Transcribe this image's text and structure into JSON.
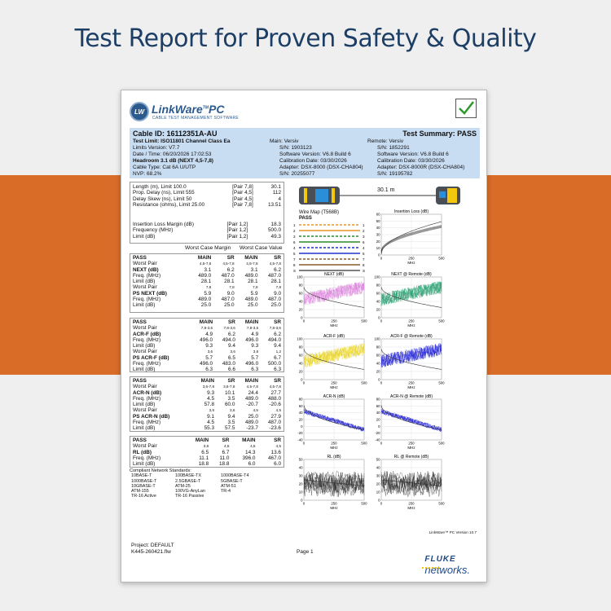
{
  "headline": "Test Report for Proven Safety & Quality",
  "logo": {
    "badge": "LW",
    "name": "LinkWare",
    "tm": "TM",
    "suffix": "PC",
    "subtitle": "CABLE TEST MANAGEMENT SOFTWARE"
  },
  "header": {
    "cable_id": "Cable ID: 16112351A-AU",
    "summary": "Test Summary: PASS",
    "left": [
      "Test Limit: ISO11801 Channel Class Ea",
      "Limits Version: V7.7",
      "Date / Time: 06/20/2026 17:02:53",
      "Headroom 3.1 dB (NEXT 4,5-7,8)",
      "Cable Type: Cat 6A U/UTP",
      "NVP: 68.2%"
    ],
    "mid": [
      "Main: Versiv",
      "S/N: 1903123",
      "Software Version: V6.8 Build 6",
      "Calibration Date: 03/30/2026",
      "Adapter: DSX-8000 (DSX-CHA804)",
      "S/N: 20255077"
    ],
    "right": [
      "Remote: Versiv",
      "S/N: 1852291",
      "Software Version: V6.8 Build 6",
      "Calibration Date: 03/30/2026",
      "Adapter: DSX-8000R (DSX-CHA804)",
      "S/N: 19195782"
    ]
  },
  "basic_results": [
    [
      "Length (m), Limit 100.0",
      "[Pair 7,8]",
      "30.1"
    ],
    [
      "Prop. Delay (ns), Limit 555",
      "[Pair 4,5]",
      "112"
    ],
    [
      "Delay Skew (ns), Limit 50",
      "[Pair 4,5]",
      "4"
    ],
    [
      "Resistance (ohms), Limit 25.00",
      "[Pair 7,8]",
      "13.51"
    ]
  ],
  "insertion_results": [
    [
      "Insertion Loss Margin (dB)",
      "[Pair 1,2]",
      "18.3"
    ],
    [
      "Frequency (MHz)",
      "[Pair 1,2]",
      "500.0"
    ],
    [
      "Limit (dB)",
      "[Pair 1,2]",
      "49.3"
    ]
  ],
  "worst_case": {
    "margin": "Worst Case Margin",
    "value": "Worst Case Value"
  },
  "blocks": [
    {
      "head": [
        "PASS",
        "MAIN",
        "SR",
        "MAIN",
        "SR"
      ],
      "groups": [
        {
          "pairs": [
            "4,5-7,8",
            "4,5-7,8",
            "4,5-7,8",
            "4,5-7,8"
          ],
          "rows": [
            [
              "NEXT (dB)",
              "3.1",
              "6.2",
              "3.1",
              "6.2"
            ],
            [
              "Freq. (MHz)",
              "489.0",
              "487.0",
              "489.0",
              "487.0"
            ],
            [
              "Limit (dB)",
              "28.1",
              "28.1",
              "28.1",
              "28.1"
            ]
          ]
        },
        {
          "pairs": [
            "7,8",
            "7,8",
            "7,8",
            "7,8"
          ],
          "rows": [
            [
              "PS NEXT (dB)",
              "5.9",
              "9.0",
              "5.9",
              "9.0"
            ],
            [
              "Freq. (MHz)",
              "489.0",
              "487.0",
              "489.0",
              "487.0"
            ],
            [
              "Limit (dB)",
              "25.0",
              "25.0",
              "25.0",
              "25.0"
            ]
          ]
        }
      ]
    },
    {
      "head": [
        "PASS",
        "MAIN",
        "SR",
        "MAIN",
        "SR"
      ],
      "groups": [
        {
          "pairs": [
            "7,8-3,6",
            "7,8-3,6",
            "7,8-3,6",
            "7,8-3,6"
          ],
          "rows": [
            [
              "ACR-F (dB)",
              "4.9",
              "6.2",
              "4.9",
              "6.2"
            ],
            [
              "Freq. (MHz)",
              "496.0",
              "494.0",
              "496.0",
              "494.0"
            ],
            [
              "Limit (dB)",
              "9.3",
              "9.4",
              "9.3",
              "9.4"
            ]
          ]
        },
        {
          "pairs": [
            "3,6",
            "3,6",
            "3,6",
            "1,2"
          ],
          "rows": [
            [
              "PS ACR-F (dB)",
              "5.7",
              "6.5",
              "5.7",
              "6.7"
            ],
            [
              "Freq. (MHz)",
              "496.0",
              "483.0",
              "496.0",
              "500.0"
            ],
            [
              "Limit (dB)",
              "6.3",
              "6.6",
              "6.3",
              "6.3"
            ]
          ]
        }
      ]
    },
    {
      "head": [
        "PASS",
        "MAIN",
        "SR",
        "MAIN",
        "SR"
      ],
      "groups": [
        {
          "pairs": [
            "3,6-7,8",
            "3,6-7,8",
            "4,5-7,8",
            "4,5-7,8"
          ],
          "rows": [
            [
              "ACR-N (dB)",
              "9.3",
              "10.1",
              "24.4",
              "27.7"
            ],
            [
              "Freq. (MHz)",
              "4.5",
              "3.5",
              "489.0",
              "488.0"
            ],
            [
              "Limit (dB)",
              "57.8",
              "60.0",
              "-20.7",
              "-20.6"
            ]
          ]
        },
        {
          "pairs": [
            "3,6",
            "3,6",
            "4,5",
            "4,5"
          ],
          "rows": [
            [
              "PS ACR-N (dB)",
              "9.1",
              "9.4",
              "25.0",
              "27.9"
            ],
            [
              "Freq. (MHz)",
              "4.5",
              "3.5",
              "489.0",
              "487.0"
            ],
            [
              "Limit (dB)",
              "55.3",
              "57.5",
              "-23.7",
              "-23.6"
            ]
          ]
        }
      ]
    },
    {
      "head": [
        "PASS",
        "MAIN",
        "SR",
        "MAIN",
        "SR"
      ],
      "groups": [
        {
          "pairs": [
            "3,6",
            "4,5",
            "4,5",
            "4,5"
          ],
          "rows": [
            [
              "RL (dB)",
              "6.5",
              "6.7",
              "14.3",
              "13.6"
            ],
            [
              "Freq. (MHz)",
              "11.1",
              "11.0",
              "396.0",
              "467.0"
            ],
            [
              "Limit (dB)",
              "18.8",
              "18.8",
              "6.0",
              "6.0"
            ]
          ]
        }
      ]
    }
  ],
  "worst_pair_label": "Worst Pair",
  "standards": {
    "title": "Compliant Network Standards:",
    "items": [
      "10BASE-T",
      "100BASE-TX",
      "1000BASE-T4",
      "1000BASE-T",
      "2.5GBASE-T",
      "5GBASE-T",
      "10GBASE-T",
      "ATM-25",
      "ATM-51",
      "ATM-155",
      "100VG-AnyLan",
      "TR-4",
      "TR-16 Active",
      "TR-16 Passive"
    ]
  },
  "tester": {
    "length": "30.1 m"
  },
  "wiremap": {
    "title": "Wire Map (T568B)",
    "status": "PASS",
    "pins": [
      "1",
      "2",
      "3",
      "6",
      "4",
      "5",
      "7",
      "8",
      "S"
    ]
  },
  "colors": {
    "orange": "#e8952a",
    "green": "#2b8a2b",
    "blue": "#2233cc",
    "brown": "#8a5a2b",
    "pink": "#d97ad9",
    "teal": "#1f9a6a",
    "yellow": "#e8d21a",
    "royal": "#1a1ad0",
    "black": "#222222"
  },
  "charts": [
    {
      "title": "Insertion Loss (dB)",
      "yticks": [
        "60",
        "50",
        "40",
        "30",
        "20",
        "10",
        "0"
      ],
      "xticks": [
        "0",
        "250",
        "500"
      ],
      "xlabel": "MHz",
      "kind": "il",
      "color": "black"
    },
    {
      "title": "NEXT (dB)",
      "yticks": [
        "100",
        "80",
        "60",
        "40",
        "20",
        "0"
      ],
      "xticks": [
        "0",
        "250",
        "500"
      ],
      "xlabel": "MHz",
      "kind": "noise",
      "color": "pink"
    },
    {
      "title": "NEXT @ Remote (dB)",
      "yticks": [
        "100",
        "80",
        "60",
        "40",
        "20",
        "0"
      ],
      "xticks": [
        "0",
        "250",
        "500"
      ],
      "xlabel": "MHz",
      "kind": "noise",
      "color": "teal"
    },
    {
      "title": "ACR-F (dB)",
      "yticks": [
        "100",
        "80",
        "60",
        "40",
        "20",
        "0"
      ],
      "xticks": [
        "0",
        "250",
        "500"
      ],
      "xlabel": "MHz",
      "kind": "noise",
      "color": "yellow"
    },
    {
      "title": "ACR-F @ Remote (dB)",
      "yticks": [
        "100",
        "80",
        "60",
        "40",
        "20",
        "0"
      ],
      "xticks": [
        "0",
        "250",
        "500"
      ],
      "xlabel": "MHz",
      "kind": "noise",
      "color": "royal"
    },
    {
      "title": "ACR-N (dB)",
      "yticks": [
        "80",
        "60",
        "40",
        "20",
        "0",
        "-20",
        "-40"
      ],
      "xticks": [
        "0",
        "250",
        "500"
      ],
      "xlabel": "MHz",
      "kind": "acrn",
      "color": "royal"
    },
    {
      "title": "ACR-N @ Remote (dB)",
      "yticks": [
        "80",
        "60",
        "40",
        "20",
        "0",
        "-20",
        "-40"
      ],
      "xticks": [
        "0",
        "250",
        "500"
      ],
      "xlabel": "MHz",
      "kind": "acrn",
      "color": "royal"
    },
    {
      "title": "RL (dB)",
      "yticks": [
        "50",
        "40",
        "30",
        "20",
        "10",
        "0"
      ],
      "xticks": [
        "0",
        "250",
        "500"
      ],
      "xlabel": "MHz",
      "kind": "rl",
      "color": "black"
    },
    {
      "title": "RL @ Remote (dB)",
      "yticks": [
        "50",
        "40",
        "30",
        "20",
        "10",
        "0"
      ],
      "xticks": [
        "0",
        "250",
        "500"
      ],
      "xlabel": "MHz",
      "kind": "rl",
      "color": "black"
    }
  ],
  "version": "LinkWare™ PC Version 10.7",
  "footer": {
    "project": "Project: DEFAULT",
    "file": "K445-260421.flw",
    "page": "Page 1",
    "brand": "FLUKE",
    "brand2": "networks."
  }
}
